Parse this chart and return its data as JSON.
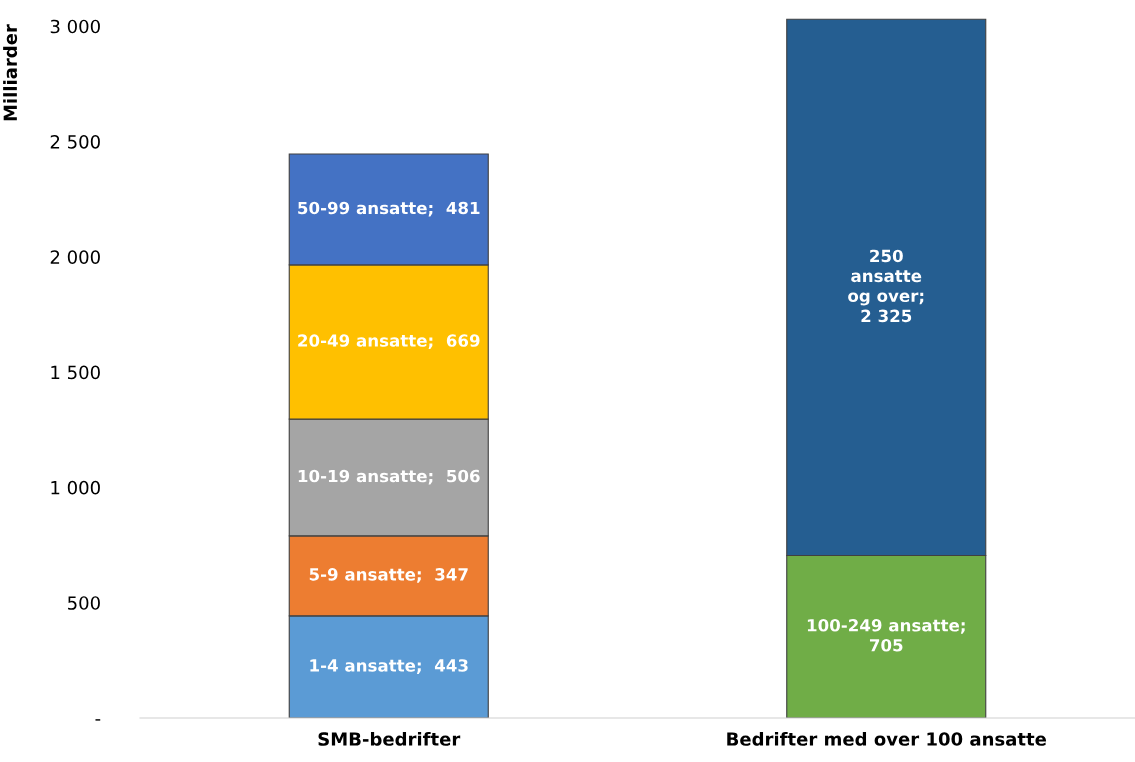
{
  "chart_data": {
    "type": "bar",
    "stacked": true,
    "ylabel": "Milliarder",
    "categories": [
      "SMB-bedrifter",
      "Bedrifter med over 100 ansatte"
    ],
    "series": [
      {
        "color": "#5b9bd5",
        "values": [
          443,
          null
        ],
        "value_labels": [
          "1-4 ansatte;  443",
          null
        ]
      },
      {
        "color": "#ed7d31",
        "values": [
          347,
          null
        ],
        "value_labels": [
          "5-9 ansatte;  347",
          null
        ]
      },
      {
        "color": "#a5a5a5",
        "values": [
          506,
          null
        ],
        "value_labels": [
          "10-19 ansatte;  506",
          null
        ]
      },
      {
        "color": "#ffc000",
        "values": [
          669,
          null
        ],
        "value_labels": [
          "20-49 ansatte;  669",
          null
        ]
      },
      {
        "color": "#4472c4",
        "values": [
          481,
          null
        ],
        "value_labels": [
          "50-99 ansatte;  481",
          null
        ]
      },
      {
        "color": "#70ad47",
        "values": [
          null,
          705
        ],
        "value_labels": [
          null,
          "100-249 ansatte;\n705"
        ]
      },
      {
        "color": "#255e91",
        "values": [
          null,
          2325
        ],
        "value_labels": [
          null,
          "250\nansatte\nog over;\n2 325"
        ]
      }
    ],
    "ylim": [
      0,
      3040
    ],
    "yticks": [
      {
        "value": 0,
        "label": "-"
      },
      500,
      {
        "value": 1000,
        "label": "1 000"
      },
      {
        "value": 1500,
        "label": "1 500"
      },
      {
        "value": 2000,
        "label": "2 000"
      },
      {
        "value": 2500,
        "label": "2 500"
      },
      {
        "value": 3000,
        "label": "3 000"
      }
    ],
    "grid": false
  }
}
